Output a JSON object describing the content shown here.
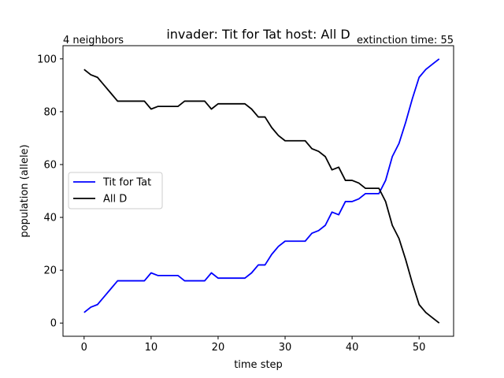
{
  "chart_data": {
    "type": "line",
    "title": "invader: Tit for Tat host: All D",
    "left_annotation": "4 neighbors",
    "right_annotation": "extinction time: 55",
    "xlabel": "time step",
    "ylabel": "population (allele)",
    "xlim": [
      -3.15,
      55.15
    ],
    "ylim": [
      -5,
      105
    ],
    "xticks": [
      0,
      10,
      20,
      30,
      40,
      50
    ],
    "yticks": [
      0,
      20,
      40,
      60,
      80,
      100
    ],
    "grid": false,
    "legend_position": "center-left",
    "x": [
      0,
      1,
      2,
      3,
      4,
      5,
      6,
      7,
      8,
      9,
      10,
      11,
      12,
      13,
      14,
      15,
      16,
      17,
      18,
      19,
      20,
      21,
      22,
      23,
      24,
      25,
      26,
      27,
      28,
      29,
      30,
      31,
      32,
      33,
      34,
      35,
      36,
      37,
      38,
      39,
      40,
      41,
      42,
      43,
      44,
      45,
      46,
      47,
      48,
      49,
      50,
      51,
      52,
      53
    ],
    "series": [
      {
        "name": "Tit for Tat",
        "color": "#0000ff",
        "values": [
          4,
          6,
          7,
          10,
          13,
          16,
          16,
          16,
          16,
          16,
          19,
          18,
          18,
          18,
          18,
          16,
          16,
          16,
          16,
          19,
          17,
          17,
          17,
          17,
          17,
          19,
          22,
          22,
          26,
          29,
          31,
          31,
          31,
          31,
          34,
          35,
          37,
          42,
          41,
          46,
          46,
          47,
          49,
          49,
          49,
          54,
          63,
          68,
          76,
          85,
          93,
          96,
          98,
          100
        ]
      },
      {
        "name": "All D",
        "color": "#000000",
        "values": [
          96,
          94,
          93,
          90,
          87,
          84,
          84,
          84,
          84,
          84,
          81,
          82,
          82,
          82,
          82,
          84,
          84,
          84,
          84,
          81,
          83,
          83,
          83,
          83,
          83,
          81,
          78,
          78,
          74,
          71,
          69,
          69,
          69,
          69,
          66,
          65,
          63,
          58,
          59,
          54,
          54,
          53,
          51,
          51,
          51,
          46,
          37,
          32,
          24,
          15,
          7,
          4,
          2,
          0
        ]
      }
    ]
  }
}
